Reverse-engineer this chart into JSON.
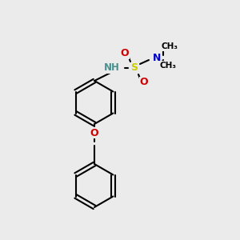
{
  "bg_color": "#ebebeb",
  "bond_color": "#000000",
  "bond_width": 1.5,
  "atom_colors": {
    "N": "#0000cc",
    "NH": "#4a9090",
    "O": "#cc0000",
    "S": "#cccc00",
    "C": "#000000"
  },
  "font_size_atom": 9,
  "font_size_methyl": 8
}
